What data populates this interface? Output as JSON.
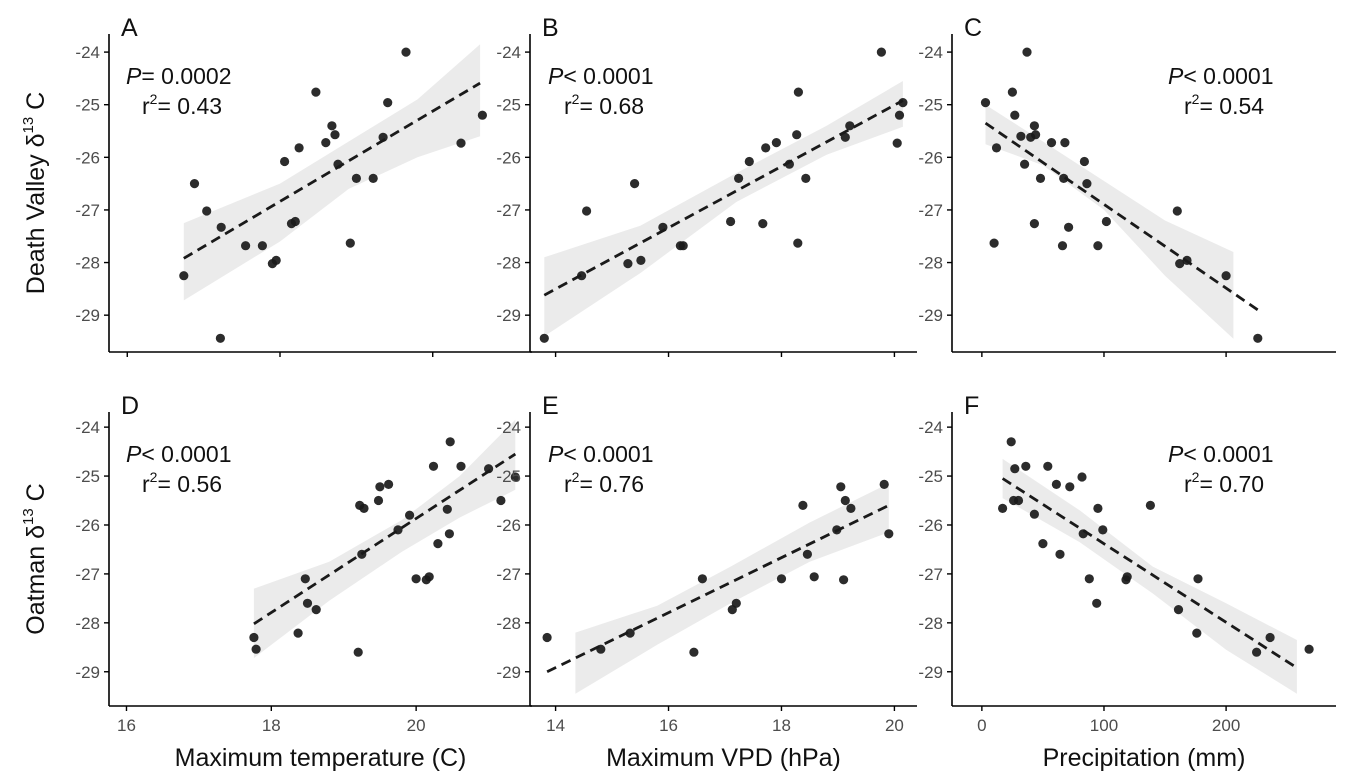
{
  "chart_data": [
    {
      "type": "scatter",
      "panel": "A",
      "stat_p_label": "P",
      "stat_p_op": "=",
      "stat_p_value": "0.0002",
      "stat_r2_label": "r",
      "stat_r2_sup": "2",
      "stat_r2_op": "=",
      "stat_r2_value": "0.43",
      "xlim": [
        15.8,
        21.3
      ],
      "ylim": [
        -29.7,
        -23.2
      ],
      "xticks": [
        16,
        18,
        20
      ],
      "yticks": [
        -29,
        -28,
        -27,
        -26,
        -25,
        -24
      ],
      "points": [
        [
          16.74,
          -28.25
        ],
        [
          16.88,
          -26.5
        ],
        [
          17.04,
          -27.02
        ],
        [
          17.23,
          -27.33
        ],
        [
          17.22,
          -29.44
        ],
        [
          17.55,
          -27.68
        ],
        [
          17.77,
          -27.68
        ],
        [
          17.9,
          -28.02
        ],
        [
          17.95,
          -27.96
        ],
        [
          18.06,
          -26.08
        ],
        [
          18.15,
          -27.26
        ],
        [
          18.2,
          -27.22
        ],
        [
          18.25,
          -25.82
        ],
        [
          18.47,
          -24.76
        ],
        [
          18.6,
          -25.72
        ],
        [
          18.68,
          -25.4
        ],
        [
          18.72,
          -25.57
        ],
        [
          18.76,
          -26.13
        ],
        [
          18.92,
          -27.63
        ],
        [
          19.0,
          -26.4
        ],
        [
          19.22,
          -26.4
        ],
        [
          19.35,
          -25.62
        ],
        [
          19.41,
          -24.96
        ],
        [
          19.65,
          -24.0
        ],
        [
          20.37,
          -25.73
        ],
        [
          20.65,
          -25.2
        ]
      ],
      "fit": [
        [
          16.74,
          -27.92
        ],
        [
          20.62,
          -24.59
        ]
      ],
      "band_upper": [
        [
          16.74,
          -27.25
        ],
        [
          18.0,
          -26.5
        ],
        [
          18.9,
          -25.7
        ],
        [
          19.8,
          -24.9
        ],
        [
          20.62,
          -23.85
        ]
      ],
      "band_lower": [
        [
          16.74,
          -28.72
        ],
        [
          18.0,
          -27.6
        ],
        [
          18.9,
          -26.6
        ],
        [
          19.8,
          -26.0
        ],
        [
          20.62,
          -25.6
        ]
      ]
    },
    {
      "type": "scatter",
      "panel": "B",
      "stat_p_label": "P",
      "stat_p_op": "<",
      "stat_p_value": "0.0001",
      "stat_r2_label": "r",
      "stat_r2_sup": "2",
      "stat_r2_op": "=",
      "stat_r2_value": "0.68",
      "xlim": [
        13.6,
        20.4
      ],
      "ylim": [
        -29.7,
        -23.2
      ],
      "xticks": [
        14,
        16,
        18,
        20
      ],
      "yticks": [
        -29,
        -28,
        -27,
        -26,
        -25,
        -24
      ],
      "points": [
        [
          13.8,
          -29.44
        ],
        [
          14.46,
          -28.25
        ],
        [
          14.55,
          -27.02
        ],
        [
          15.28,
          -28.02
        ],
        [
          15.4,
          -26.5
        ],
        [
          15.51,
          -27.96
        ],
        [
          15.9,
          -27.33
        ],
        [
          16.21,
          -27.68
        ],
        [
          16.26,
          -27.68
        ],
        [
          17.1,
          -27.22
        ],
        [
          17.24,
          -26.4
        ],
        [
          17.43,
          -26.08
        ],
        [
          17.67,
          -27.26
        ],
        [
          17.72,
          -25.82
        ],
        [
          17.91,
          -25.72
        ],
        [
          18.14,
          -26.13
        ],
        [
          18.27,
          -25.57
        ],
        [
          18.29,
          -27.63
        ],
        [
          18.3,
          -24.76
        ],
        [
          18.43,
          -26.4
        ],
        [
          19.13,
          -25.62
        ],
        [
          19.21,
          -25.4
        ],
        [
          19.77,
          -24.0
        ],
        [
          20.05,
          -25.73
        ],
        [
          20.09,
          -25.2
        ],
        [
          20.15,
          -24.96
        ]
      ],
      "fit": [
        [
          13.8,
          -28.62
        ],
        [
          20.15,
          -24.92
        ]
      ],
      "band_upper": [
        [
          13.8,
          -27.9
        ],
        [
          15.5,
          -27.3
        ],
        [
          17.2,
          -26.3
        ],
        [
          18.8,
          -25.4
        ],
        [
          20.15,
          -24.55
        ]
      ],
      "band_lower": [
        [
          13.8,
          -29.4
        ],
        [
          15.5,
          -28.2
        ],
        [
          17.2,
          -26.85
        ],
        [
          18.8,
          -25.95
        ],
        [
          20.15,
          -25.42
        ]
      ]
    },
    {
      "type": "scatter",
      "panel": "C",
      "stat_p_label": "P",
      "stat_p_op": "<",
      "stat_p_value": "0.0001",
      "stat_r2_label": "r",
      "stat_r2_sup": "2",
      "stat_r2_op": "=",
      "stat_r2_value": "0.54",
      "xlim": [
        -22,
        290
      ],
      "ylim": [
        -29.7,
        -23.2
      ],
      "xticks": [
        0,
        100,
        200
      ],
      "yticks": [
        -29,
        -28,
        -27,
        -26,
        -25,
        -24
      ],
      "points": [
        [
          3,
          -24.96
        ],
        [
          10,
          -27.63
        ],
        [
          12,
          -25.82
        ],
        [
          25,
          -24.76
        ],
        [
          27,
          -25.2
        ],
        [
          32,
          -25.6
        ],
        [
          35,
          -26.13
        ],
        [
          37,
          -24.0
        ],
        [
          40,
          -25.62
        ],
        [
          43,
          -27.26
        ],
        [
          43,
          -25.4
        ],
        [
          44,
          -25.57
        ],
        [
          48,
          -26.4
        ],
        [
          57,
          -25.72
        ],
        [
          66,
          -27.68
        ],
        [
          67,
          -26.4
        ],
        [
          68,
          -25.72
        ],
        [
          71,
          -27.33
        ],
        [
          84,
          -26.08
        ],
        [
          86,
          -26.5
        ],
        [
          95,
          -27.68
        ],
        [
          102,
          -27.22
        ],
        [
          160,
          -27.02
        ],
        [
          162,
          -28.02
        ],
        [
          168,
          -27.96
        ],
        [
          200,
          -28.25
        ],
        [
          226,
          -29.44
        ]
      ],
      "fit": [
        [
          3,
          -25.35
        ],
        [
          226,
          -28.9
        ]
      ],
      "band_upper": [
        [
          3,
          -25.0
        ],
        [
          50,
          -25.7
        ],
        [
          100,
          -26.45
        ],
        [
          150,
          -27.2
        ],
        [
          206,
          -27.8
        ]
      ],
      "band_lower": [
        [
          3,
          -25.75
        ],
        [
          50,
          -26.15
        ],
        [
          100,
          -27.0
        ],
        [
          150,
          -28.25
        ],
        [
          206,
          -29.45
        ]
      ]
    },
    {
      "type": "scatter",
      "panel": "D",
      "stat_p_label": "P",
      "stat_p_op": "<",
      "stat_p_value": "0.0001",
      "stat_r2_label": "r",
      "stat_r2_sup": "2",
      "stat_r2_op": "=",
      "stat_r2_value": "0.56",
      "xlim": [
        15.8,
        21.6
      ],
      "ylim": [
        -29.7,
        -23.2
      ],
      "xticks": [
        16,
        18,
        20
      ],
      "yticks": [
        -29,
        -28,
        -27,
        -26,
        -25,
        -24
      ],
      "points": [
        [
          17.76,
          -28.3
        ],
        [
          17.79,
          -28.54
        ],
        [
          18.37,
          -28.21
        ],
        [
          18.47,
          -27.1
        ],
        [
          18.5,
          -27.6
        ],
        [
          18.62,
          -27.73
        ],
        [
          19.2,
          -28.6
        ],
        [
          19.22,
          -25.6
        ],
        [
          19.28,
          -25.66
        ],
        [
          19.25,
          -26.6
        ],
        [
          19.48,
          -25.5
        ],
        [
          19.5,
          -25.22
        ],
        [
          19.62,
          -25.17
        ],
        [
          19.75,
          -26.1
        ],
        [
          19.91,
          -25.8
        ],
        [
          20.0,
          -27.1
        ],
        [
          20.14,
          -27.12
        ],
        [
          20.18,
          -27.06
        ],
        [
          20.24,
          -24.8
        ],
        [
          20.3,
          -26.38
        ],
        [
          20.43,
          -25.68
        ],
        [
          20.46,
          -26.18
        ],
        [
          20.47,
          -24.3
        ],
        [
          20.62,
          -24.8
        ],
        [
          21.0,
          -24.85
        ],
        [
          21.17,
          -25.5
        ],
        [
          21.37,
          -25.02
        ]
      ],
      "fit": [
        [
          17.76,
          -28.02
        ],
        [
          21.37,
          -24.55
        ]
      ],
      "band_upper": [
        [
          17.76,
          -27.3
        ],
        [
          18.8,
          -26.75
        ],
        [
          19.8,
          -25.9
        ],
        [
          20.6,
          -25.0
        ],
        [
          21.37,
          -23.85
        ]
      ],
      "band_lower": [
        [
          17.76,
          -28.72
        ],
        [
          18.8,
          -27.55
        ],
        [
          19.8,
          -26.55
        ],
        [
          20.6,
          -25.85
        ],
        [
          21.37,
          -25.28
        ]
      ]
    },
    {
      "type": "scatter",
      "panel": "E",
      "stat_p_label": "P",
      "stat_p_op": "<",
      "stat_p_value": "0.0001",
      "stat_r2_label": "r",
      "stat_r2_sup": "2",
      "stat_r2_op": "=",
      "stat_r2_value": "0.76",
      "xlim": [
        13.6,
        20.4
      ],
      "ylim": [
        -29.7,
        -23.2
      ],
      "xticks": [
        14,
        16,
        18,
        20
      ],
      "yticks": [
        -29,
        -28,
        -27,
        -26,
        -25,
        -24
      ],
      "points": [
        [
          13.85,
          -28.3
        ],
        [
          14.8,
          -28.54
        ],
        [
          15.32,
          -28.21
        ],
        [
          16.45,
          -28.6
        ],
        [
          16.6,
          -27.1
        ],
        [
          17.13,
          -27.73
        ],
        [
          17.2,
          -27.6
        ],
        [
          18.0,
          -27.1
        ],
        [
          18.38,
          -25.6
        ],
        [
          18.46,
          -26.6
        ],
        [
          18.58,
          -27.06
        ],
        [
          18.98,
          -26.1
        ],
        [
          19.05,
          -25.22
        ],
        [
          19.1,
          -27.12
        ],
        [
          19.13,
          -25.5
        ],
        [
          19.23,
          -25.66
        ],
        [
          19.82,
          -25.17
        ],
        [
          19.9,
          -26.18
        ]
      ],
      "fit": [
        [
          13.85,
          -29.0
        ],
        [
          19.9,
          -25.6
        ]
      ],
      "band_upper": [
        [
          14.35,
          -28.2
        ],
        [
          15.8,
          -27.65
        ],
        [
          17.1,
          -26.85
        ],
        [
          18.5,
          -25.95
        ],
        [
          19.9,
          -25.15
        ]
      ],
      "band_lower": [
        [
          14.35,
          -29.45
        ],
        [
          15.8,
          -28.45
        ],
        [
          17.1,
          -27.6
        ],
        [
          18.5,
          -26.75
        ],
        [
          19.9,
          -26.15
        ]
      ]
    },
    {
      "type": "scatter",
      "panel": "F",
      "stat_p_label": "P",
      "stat_p_op": "<",
      "stat_p_value": "0.0001",
      "stat_r2_label": "r",
      "stat_r2_sup": "2",
      "stat_r2_op": "=",
      "stat_r2_value": "0.70",
      "xlim": [
        -22,
        290
      ],
      "ylim": [
        -29.7,
        -23.2
      ],
      "xticks": [
        0,
        100,
        200
      ],
      "yticks": [
        -29,
        -28,
        -27,
        -26,
        -25,
        -24
      ],
      "points": [
        [
          17,
          -25.66
        ],
        [
          24,
          -24.3
        ],
        [
          26,
          -25.5
        ],
        [
          27,
          -24.85
        ],
        [
          30,
          -25.5
        ],
        [
          36,
          -24.8
        ],
        [
          43,
          -25.78
        ],
        [
          50,
          -26.38
        ],
        [
          54,
          -24.8
        ],
        [
          61,
          -25.17
        ],
        [
          64,
          -26.6
        ],
        [
          72,
          -25.22
        ],
        [
          82,
          -25.02
        ],
        [
          83,
          -26.18
        ],
        [
          88,
          -27.1
        ],
        [
          94,
          -27.6
        ],
        [
          95,
          -25.66
        ],
        [
          99,
          -26.1
        ],
        [
          118,
          -27.12
        ],
        [
          119,
          -27.06
        ],
        [
          138,
          -25.6
        ],
        [
          161,
          -27.73
        ],
        [
          176,
          -28.21
        ],
        [
          177,
          -27.1
        ],
        [
          225,
          -28.6
        ],
        [
          236,
          -28.3
        ],
        [
          268,
          -28.54
        ]
      ],
      "fit": [
        [
          17,
          -25.05
        ],
        [
          258,
          -28.92
        ]
      ],
      "band_upper": [
        [
          17,
          -24.65
        ],
        [
          80,
          -25.7
        ],
        [
          140,
          -26.85
        ],
        [
          200,
          -27.6
        ],
        [
          258,
          -28.35
        ]
      ],
      "band_lower": [
        [
          17,
          -25.45
        ],
        [
          80,
          -26.35
        ],
        [
          140,
          -27.4
        ],
        [
          200,
          -28.55
        ],
        [
          258,
          -29.45
        ]
      ]
    }
  ],
  "axes": {
    "x_titles": [
      "Maximum temperature (C)",
      "Maximum VPD (hPa)",
      "Precipitation (mm)"
    ],
    "row_titles": [
      {
        "main": "Death Valley δ",
        "sup": "13",
        "tail": " C"
      },
      {
        "main": "Oatman δ",
        "sup": "13",
        "tail": " C"
      }
    ]
  },
  "colors": {
    "point": "#1a1a1a",
    "band": "#ebebeb",
    "fit": "#1a1a1a",
    "axis": "#000000",
    "tick_label": "#4d4d4d"
  }
}
